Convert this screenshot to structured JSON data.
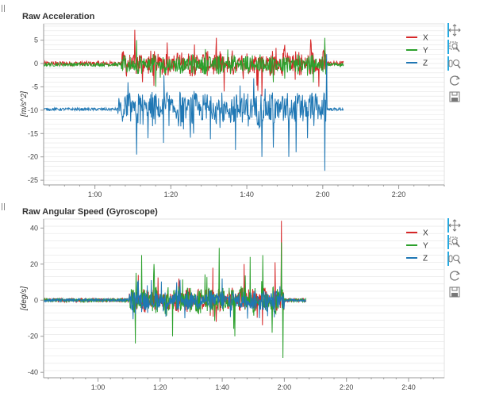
{
  "colors": {
    "x": "#d62728",
    "y": "#2ca02c",
    "z": "#1f77b4",
    "grid": "#e5e5e5",
    "axis": "#9a9a9a",
    "toolbar_active": "#26aae1"
  },
  "toolbar": [
    "pan-icon",
    "box-zoom-icon",
    "wheel-zoom-icon",
    "reset-icon",
    "save-icon"
  ],
  "chart_data": [
    {
      "type": "line",
      "title": "Raw Acceleration",
      "ylabel": "[m/s^2]",
      "xlabel": "",
      "x_ticks": [
        "1:00",
        "1:20",
        "1:40",
        "2:00",
        "2:20"
      ],
      "x_tick_seconds": [
        60,
        80,
        100,
        120,
        140
      ],
      "x_range_seconds": [
        46.5,
        152
      ],
      "y_ticks": [
        5,
        0,
        -5,
        -10,
        -15,
        -20,
        -25
      ],
      "ylim": [
        -26,
        8.5
      ],
      "legend": {
        "placement": "top-right",
        "entries": [
          "X",
          "Y",
          "Z"
        ]
      },
      "grid": true,
      "series": [
        {
          "name": "X",
          "key": "x",
          "baseline": 0,
          "quiet_noise": 0.5,
          "active_amp": 3.0,
          "active_range": [
            67,
            121
          ],
          "spikes": [
            [
              70.5,
              7.2
            ],
            [
              72.5,
              -4
            ],
            [
              79,
              4.5
            ],
            [
              94,
              -6
            ],
            [
              104,
              -7
            ],
            [
              110,
              4
            ],
            [
              119,
              -5
            ]
          ]
        },
        {
          "name": "Y",
          "key": "y",
          "baseline": -0.2,
          "quiet_noise": 0.4,
          "active_amp": 2.2,
          "active_range": [
            67,
            121
          ],
          "spikes": [
            [
              71,
              5
            ],
            [
              76,
              -5
            ],
            [
              95,
              3
            ],
            [
              107,
              -4
            ],
            [
              120.5,
              5.5
            ],
            [
              121,
              -3
            ]
          ]
        },
        {
          "name": "Z",
          "key": "z",
          "baseline": -9.8,
          "quiet_noise": 0.3,
          "active_amp": 4.0,
          "active_range": [
            66,
            121
          ],
          "spikes": [
            [
              71,
              -19.5
            ],
            [
              74,
              -16
            ],
            [
              78,
              -17
            ],
            [
              86,
              -15
            ],
            [
              97,
              -18.5
            ],
            [
              104,
              -20
            ],
            [
              107,
              -18
            ],
            [
              111,
              -20
            ],
            [
              113,
              -19
            ],
            [
              116,
              -16
            ],
            [
              120.5,
              -23
            ],
            [
              121,
              2
            ]
          ]
        }
      ],
      "noise_start": 46.5,
      "noise_end": 125.5
    },
    {
      "type": "line",
      "title": "Raw Angular Speed (Gyroscope)",
      "ylabel": "[deg/s]",
      "xlabel": "",
      "x_ticks": [
        "1:00",
        "1:20",
        "1:40",
        "2:00",
        "2:20",
        "2:40"
      ],
      "x_tick_seconds": [
        60,
        80,
        100,
        120,
        140,
        160
      ],
      "x_range_seconds": [
        42.5,
        171.5
      ],
      "y_ticks": [
        40,
        20,
        0,
        -20,
        -40
      ],
      "ylim": [
        -43,
        45
      ],
      "legend": {
        "placement": "top-right",
        "entries": [
          "X",
          "Y",
          "Z"
        ]
      },
      "grid": true,
      "series": [
        {
          "name": "X",
          "key": "x",
          "baseline": 0,
          "quiet_noise": 1.0,
          "active_amp": 7.0,
          "active_range": [
            70,
            120
          ],
          "spikes": [
            [
              73,
              14
            ],
            [
              86,
              12
            ],
            [
              97,
              18
            ],
            [
              107,
              20
            ],
            [
              117,
              21
            ],
            [
              119,
              44
            ],
            [
              98,
              -12
            ]
          ]
        },
        {
          "name": "Y",
          "key": "y",
          "baseline": 0,
          "quiet_noise": 1.0,
          "active_amp": 8.0,
          "active_range": [
            70,
            120
          ],
          "spikes": [
            [
              72,
              -24
            ],
            [
              74,
              25
            ],
            [
              78,
              20
            ],
            [
              84,
              -20
            ],
            [
              99,
              29
            ],
            [
              104,
              -20
            ],
            [
              109,
              24
            ],
            [
              113,
              25
            ],
            [
              119,
              32
            ],
            [
              119.5,
              -32
            ],
            [
              116,
              -18
            ]
          ]
        },
        {
          "name": "Z",
          "key": "z",
          "baseline": 0,
          "quiet_noise": 0.8,
          "active_amp": 6.0,
          "active_range": [
            70,
            120
          ],
          "spikes": [
            [
              73,
              11
            ],
            [
              88,
              -10
            ],
            [
              100,
              12
            ],
            [
              112,
              -10
            ]
          ]
        }
      ],
      "noise_start": 42.5,
      "noise_end": 127
    }
  ]
}
